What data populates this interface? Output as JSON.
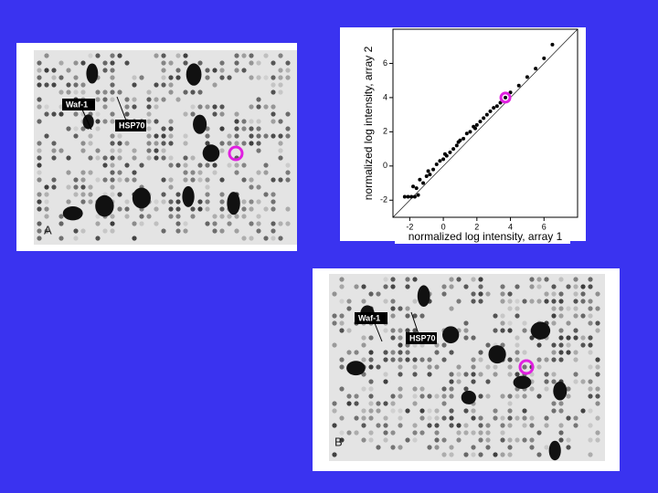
{
  "chart_data": {
    "type": "scatter",
    "xlabel": "normalized log intensity, array 1",
    "ylabel": "normalized log intensity, array 2",
    "x": [
      -2.3,
      -2.1,
      -1.9,
      -1.7,
      -1.5,
      -1.6,
      -1.2,
      -1.0,
      -0.8,
      -0.6,
      -0.4,
      -0.2,
      0,
      0.2,
      0.4,
      0.6,
      0.8,
      1.0,
      1.2,
      1.4,
      1.6,
      1.8,
      2.0,
      2.2,
      2.4,
      2.6,
      2.8,
      3.0,
      3.2,
      3.4,
      3.7,
      4.0,
      4.5,
      5.0,
      5.5,
      6.0,
      6.5,
      -1.8,
      -1.4,
      -0.9,
      0.1,
      0.9,
      1.9
    ],
    "y": [
      -1.8,
      -1.8,
      -1.8,
      -1.8,
      -1.7,
      -1.3,
      -1.0,
      -0.6,
      -0.5,
      -0.2,
      0.1,
      0.3,
      0.4,
      0.6,
      0.8,
      1.0,
      1.2,
      1.5,
      1.6,
      1.9,
      2.0,
      2.3,
      2.4,
      2.6,
      2.8,
      3.0,
      3.2,
      3.4,
      3.5,
      3.7,
      4.0,
      4.3,
      4.7,
      5.2,
      5.7,
      6.3,
      7.1,
      -1.2,
      -0.8,
      -0.3,
      0.7,
      1.4,
      2.2
    ],
    "color": "#000000",
    "highlight": {
      "x": 3.7,
      "y": 4.0,
      "color": "#e020e0"
    },
    "xlim": [
      -3,
      8
    ],
    "ylim": [
      -3,
      8
    ],
    "xticks": [
      -2,
      0,
      2,
      4,
      6
    ],
    "yticks": [
      -2,
      0,
      2,
      4,
      6
    ]
  },
  "panels": [
    {
      "label": "A",
      "annotations": [
        "Waf-1",
        "HSP70"
      ]
    },
    {
      "label": "B",
      "annotations": [
        "Waf-1",
        "HSP70"
      ]
    }
  ]
}
